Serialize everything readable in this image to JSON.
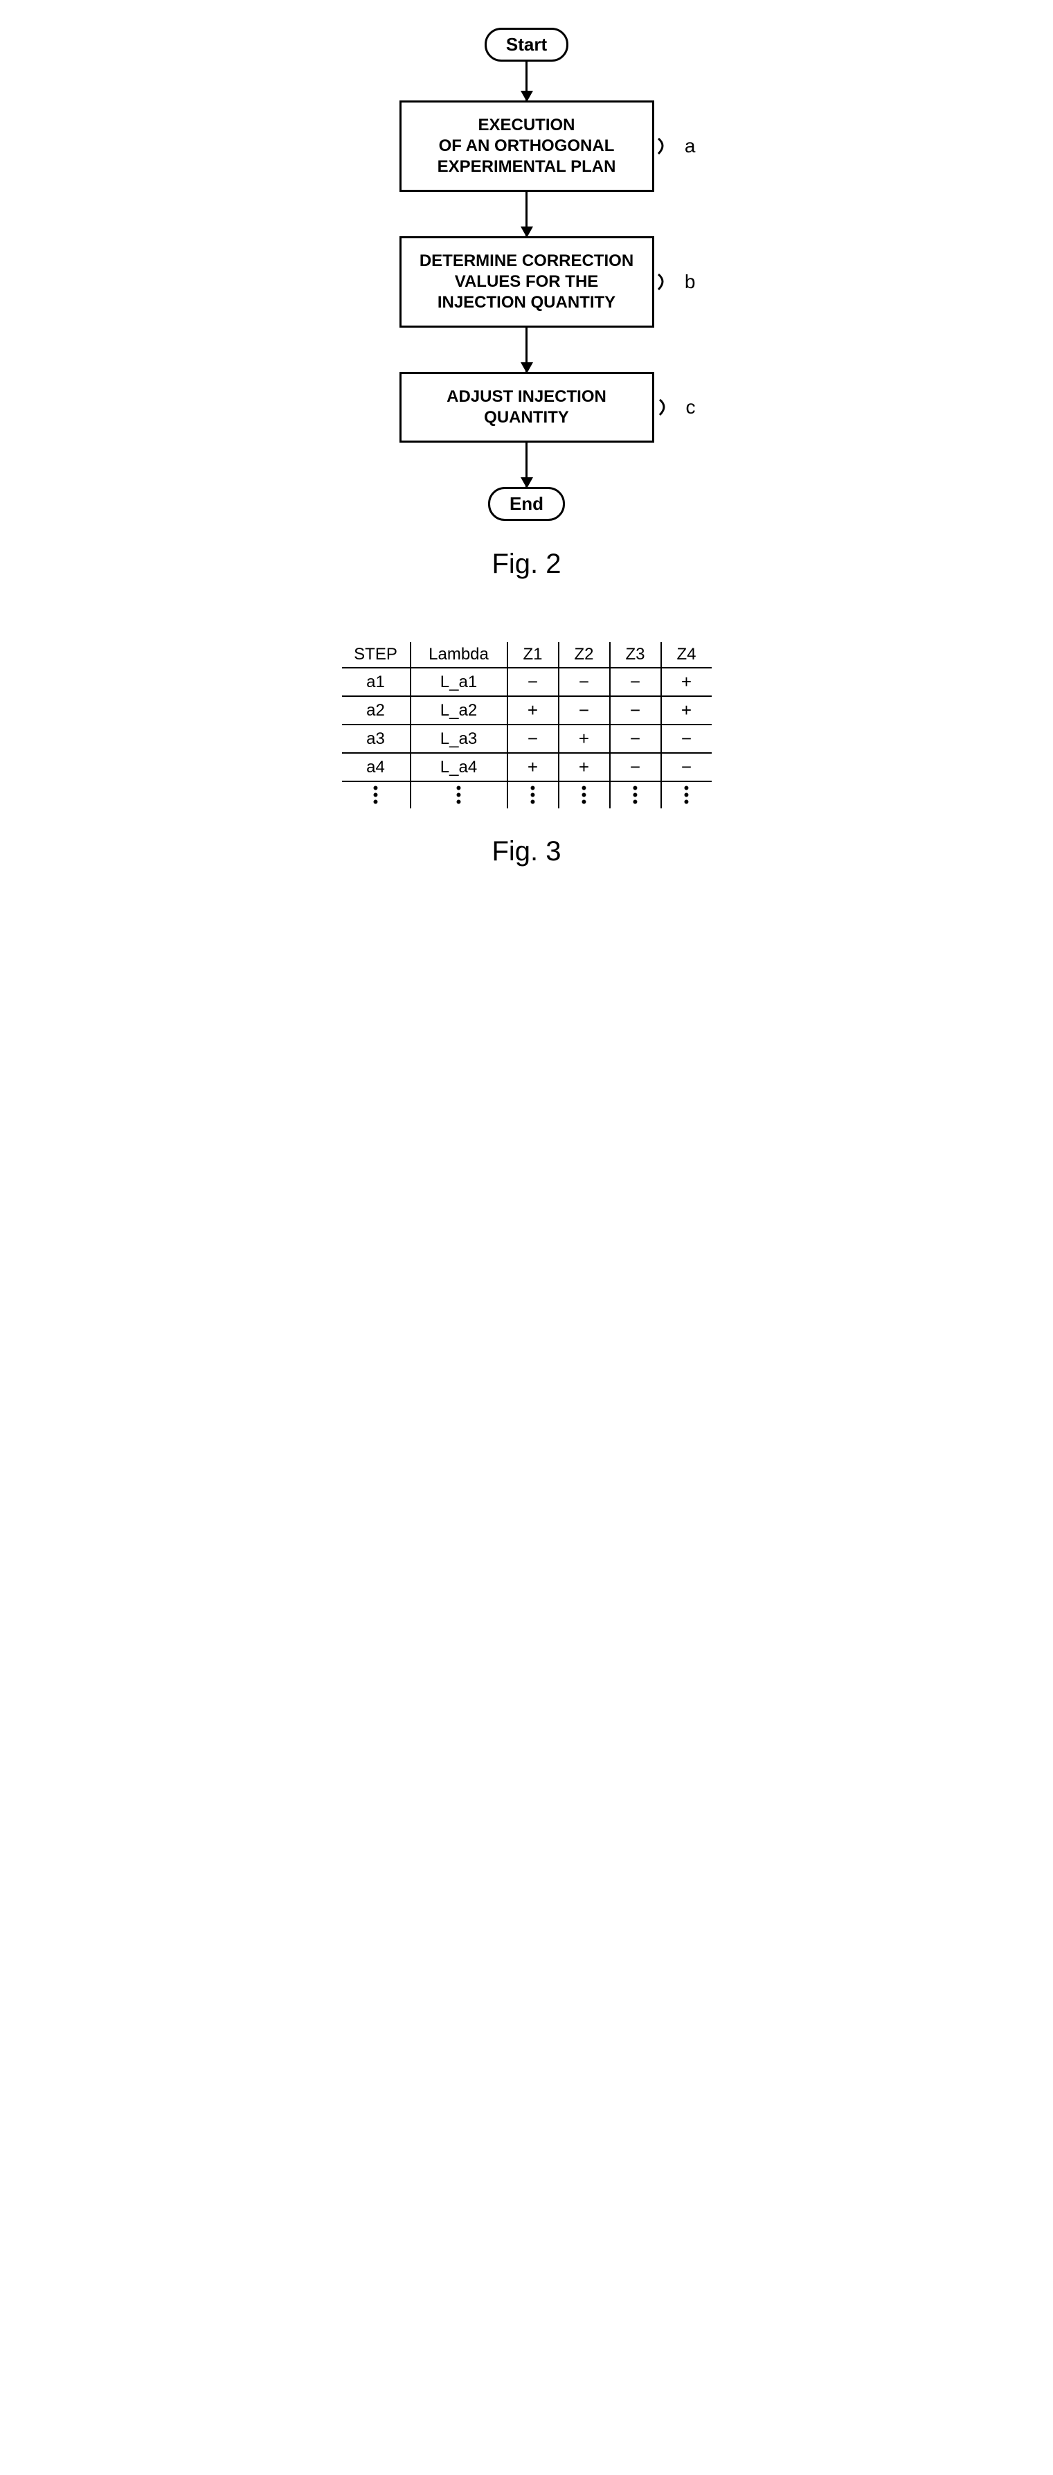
{
  "flowchart": {
    "start_label": "Start",
    "end_label": "End",
    "steps": [
      {
        "text": "EXECUTION\nOF AN ORTHOGONAL\nEXPERIMENTAL PLAN",
        "side_label": "a"
      },
      {
        "text": "DETERMINE CORRECTION\nVALUES FOR THE\nINJECTION QUANTITY",
        "side_label": "b"
      },
      {
        "text": "ADJUST INJECTION\nQUANTITY",
        "side_label": "c"
      }
    ],
    "caption": "Fig. 2",
    "border_color": "#000000",
    "background_color": "#ffffff",
    "line_width": 3,
    "terminal_radius": 24,
    "process_width": 330,
    "font_family": "Comic Sans MS"
  },
  "table": {
    "caption": "Fig. 3",
    "columns": [
      "STEP",
      "Lambda",
      "Z1",
      "Z2",
      "Z3",
      "Z4"
    ],
    "rows": [
      [
        "a1",
        "L_a1",
        "−",
        "−",
        "−",
        "+"
      ],
      [
        "a2",
        "L_a2",
        "+",
        "−",
        "−",
        "+"
      ],
      [
        "a3",
        "L_a3",
        "−",
        "+",
        "−",
        "−"
      ],
      [
        "a4",
        "L_a4",
        "+",
        "+",
        "−",
        "−"
      ]
    ],
    "has_continuation_dots": true,
    "border_color": "#000000",
    "background_color": "#ffffff",
    "line_width": 2,
    "font_size": 24
  }
}
